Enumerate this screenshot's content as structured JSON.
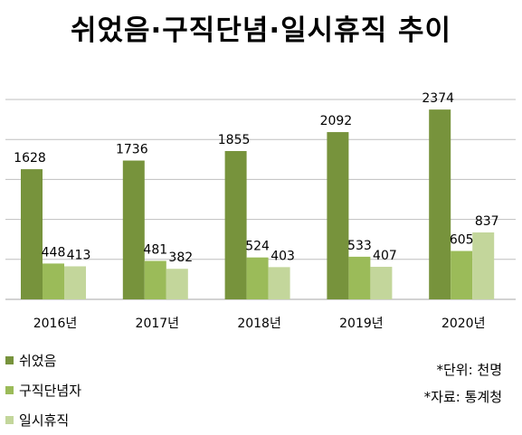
{
  "chart_data": {
    "type": "bar",
    "title": "쉬었음·구직단념·일시휴직 추이",
    "categories": [
      "2016년",
      "2017년",
      "2018년",
      "2019년",
      "2020년"
    ],
    "series": [
      {
        "name": "쉬었음",
        "color": "#77933c",
        "values": [
          1628,
          1736,
          1855,
          2092,
          2374
        ]
      },
      {
        "name": "구직단념자",
        "color": "#9bbb59",
        "values": [
          448,
          481,
          524,
          533,
          605
        ]
      },
      {
        "name": "일시휴직",
        "color": "#c3d69b",
        "values": [
          413,
          382,
          403,
          407,
          837
        ]
      }
    ],
    "ylim": [
      0,
      2500
    ],
    "grid": true,
    "legend": "bottom-left",
    "notes": {
      "unit": "*단위: 천명",
      "source": "*자료: 통계청"
    }
  }
}
